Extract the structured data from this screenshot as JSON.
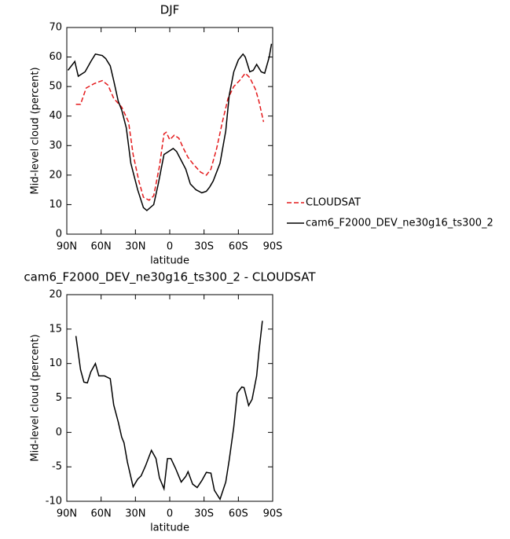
{
  "chart_data": [
    {
      "type": "line",
      "title": "DJF",
      "xlabel": "latitude",
      "ylabel": "Mid-level cloud (percent)",
      "xlim": [
        90,
        -90
      ],
      "xticks": [
        {
          "value": 90,
          "label": "90N"
        },
        {
          "value": 60,
          "label": "60N"
        },
        {
          "value": 30,
          "label": "30N"
        },
        0,
        {
          "value": -30,
          "label": "30S"
        },
        {
          "value": -60,
          "label": "60S"
        },
        {
          "value": -90,
          "label": "90S"
        }
      ],
      "ylim": [
        0,
        70
      ],
      "yticks": [
        0,
        10,
        20,
        30,
        40,
        50,
        60,
        70
      ],
      "grid": false,
      "legend": "right",
      "series": [
        {
          "name": "CLOUDSAT",
          "color": "#e41a1c",
          "dashed": true,
          "x": [
            82,
            78,
            73,
            66,
            59,
            54,
            49,
            42,
            36,
            32,
            27,
            23,
            18,
            14,
            9,
            5,
            3,
            0,
            -4,
            -8,
            -12,
            -16,
            -21,
            -27,
            -32,
            -36,
            -41,
            -46,
            -51,
            -56,
            -61,
            -66,
            -70,
            -75,
            -78,
            -82
          ],
          "values": [
            44,
            44,
            49.5,
            51,
            52,
            50.5,
            46,
            43,
            38,
            27,
            18,
            12.5,
            11.5,
            13,
            23,
            34,
            34.5,
            32,
            33.5,
            32.5,
            29,
            26,
            23.5,
            21,
            20,
            22,
            29,
            38,
            46,
            50,
            52,
            54.5,
            53,
            49,
            45,
            38
          ]
        },
        {
          "name": "cam6_F2000_DEV_ne30g16_ts300_2",
          "color": "#000000",
          "dashed": false,
          "x": [
            89,
            83,
            80,
            74,
            69,
            65,
            59,
            56,
            52,
            49,
            45,
            42,
            38,
            34,
            28,
            23,
            20,
            14,
            10,
            5,
            3,
            -3,
            -6,
            -10,
            -14,
            -18,
            -23,
            -28,
            -32,
            -35,
            -38,
            -44,
            -49,
            -52,
            -56,
            -60,
            -64,
            -66,
            -70,
            -73,
            -76,
            -80,
            -83,
            -87,
            -89
          ],
          "values": [
            55.5,
            58.5,
            53.5,
            55,
            58.5,
            61,
            60.5,
            59.5,
            57,
            52,
            45,
            42,
            36,
            24,
            15,
            9,
            8,
            10,
            17,
            27,
            27.5,
            29,
            28,
            25,
            22,
            17,
            15,
            14,
            14.5,
            16,
            18,
            24,
            35,
            47,
            55,
            59,
            61,
            60,
            55,
            55.5,
            57.5,
            55,
            54.5,
            60,
            64.5
          ]
        }
      ]
    },
    {
      "type": "line",
      "title": "cam6_F2000_DEV_ne30g16_ts300_2 - CLOUDSAT",
      "xlabel": "latitude",
      "ylabel": "Mid-level cloud (percent)",
      "xlim": [
        90,
        -90
      ],
      "xticks": [
        {
          "value": 90,
          "label": "90N"
        },
        {
          "value": 60,
          "label": "60N"
        },
        {
          "value": 30,
          "label": "30N"
        },
        0,
        {
          "value": -30,
          "label": "30S"
        },
        {
          "value": -60,
          "label": "60S"
        },
        {
          "value": -90,
          "label": "90S"
        }
      ],
      "ylim": [
        -10,
        20
      ],
      "yticks": [
        -10,
        -5,
        0,
        5,
        10,
        15,
        20
      ],
      "grid": false,
      "series": [
        {
          "color": "#000000",
          "dashed": false,
          "x": [
            82,
            78,
            75,
            72,
            69,
            65,
            62,
            57,
            52,
            49,
            45,
            42,
            40,
            37,
            32,
            28,
            25,
            21,
            16,
            12,
            9,
            5,
            2,
            -1,
            -5,
            -10,
            -14,
            -16,
            -20,
            -24,
            -28,
            -32,
            -36,
            -39,
            -44,
            -49,
            -52,
            -56,
            -59,
            -63,
            -65,
            -69,
            -72,
            -76,
            -78,
            -81
          ],
          "values": [
            14,
            9.1,
            7.3,
            7.2,
            8.8,
            10,
            8.2,
            8.2,
            7.8,
            4,
            1.5,
            -0.7,
            -1.5,
            -4.3,
            -7.9,
            -6.8,
            -6.3,
            -4.8,
            -2.6,
            -3.8,
            -6.6,
            -8.2,
            -3.8,
            -3.8,
            -5.2,
            -7.2,
            -6.4,
            -5.7,
            -7.5,
            -8,
            -7,
            -5.8,
            -5.9,
            -8.4,
            -9.7,
            -7.2,
            -4,
            0.8,
            5.7,
            6.6,
            6.5,
            3.9,
            4.8,
            8.2,
            11.7,
            16.2
          ]
        }
      ]
    }
  ]
}
